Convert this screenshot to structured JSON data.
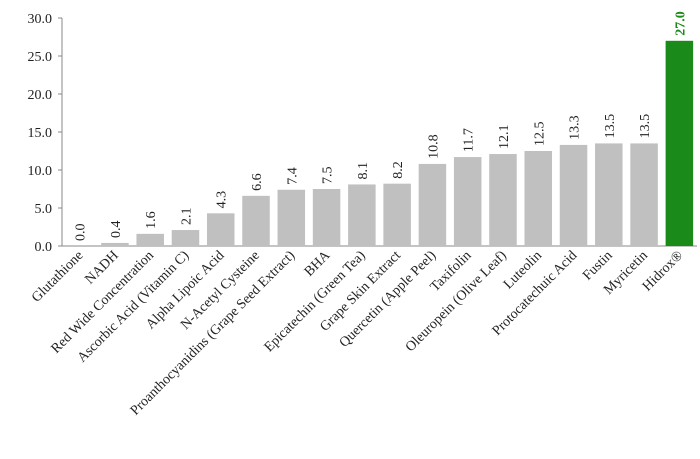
{
  "chart_data": {
    "type": "bar",
    "categories": [
      "Glutathione",
      "NADH",
      "Red Wide Concentration",
      "Ascorbic Acid (Vitamin C)",
      "Alpha Lipoic Acid",
      "N-Acetyl Cysteine",
      "Proanthocyanidins  (Grape Seed Extract)",
      "BHA",
      "Epicatechin (Green Tea)",
      "Grape Skin Extract",
      "Quercetin (Apple Peel)",
      "Taxifolin",
      "Oleuropein (Olive Leaf)",
      "Luteolin",
      "Protocatechuic Acid",
      "Fustin",
      "Myricetin",
      "Hidrox®"
    ],
    "values": [
      0.0,
      0.4,
      1.6,
      2.1,
      4.3,
      6.6,
      7.4,
      7.5,
      8.1,
      8.2,
      10.8,
      11.7,
      12.1,
      12.5,
      13.3,
      13.5,
      13.5,
      27.0
    ],
    "value_labels": [
      "0.0",
      "0.4",
      "1.6",
      "2.1",
      "4.3",
      "6.6",
      "7.4",
      "7.5",
      "8.1",
      "8.2",
      "10.8",
      "11.7",
      "12.1",
      "12.5",
      "13.3",
      "13.5",
      "13.5",
      "27.0"
    ],
    "colors": [
      "#c0c0c0",
      "#c0c0c0",
      "#c0c0c0",
      "#c0c0c0",
      "#c0c0c0",
      "#c0c0c0",
      "#c0c0c0",
      "#c0c0c0",
      "#c0c0c0",
      "#c0c0c0",
      "#c0c0c0",
      "#c0c0c0",
      "#c0c0c0",
      "#c0c0c0",
      "#c0c0c0",
      "#c0c0c0",
      "#c0c0c0",
      "#1a8a1a"
    ],
    "ylim": [
      0,
      30
    ],
    "yticks": [
      {
        "value": 0,
        "label": "0.0"
      },
      {
        "value": 5,
        "label": "5.0"
      },
      {
        "value": 10,
        "label": "10.0"
      },
      {
        "value": 15,
        "label": "15.0"
      },
      {
        "value": 20,
        "label": "20.0"
      },
      {
        "value": 25,
        "label": "25.0"
      },
      {
        "value": 30,
        "label": "30.0"
      }
    ],
    "grid": false
  }
}
